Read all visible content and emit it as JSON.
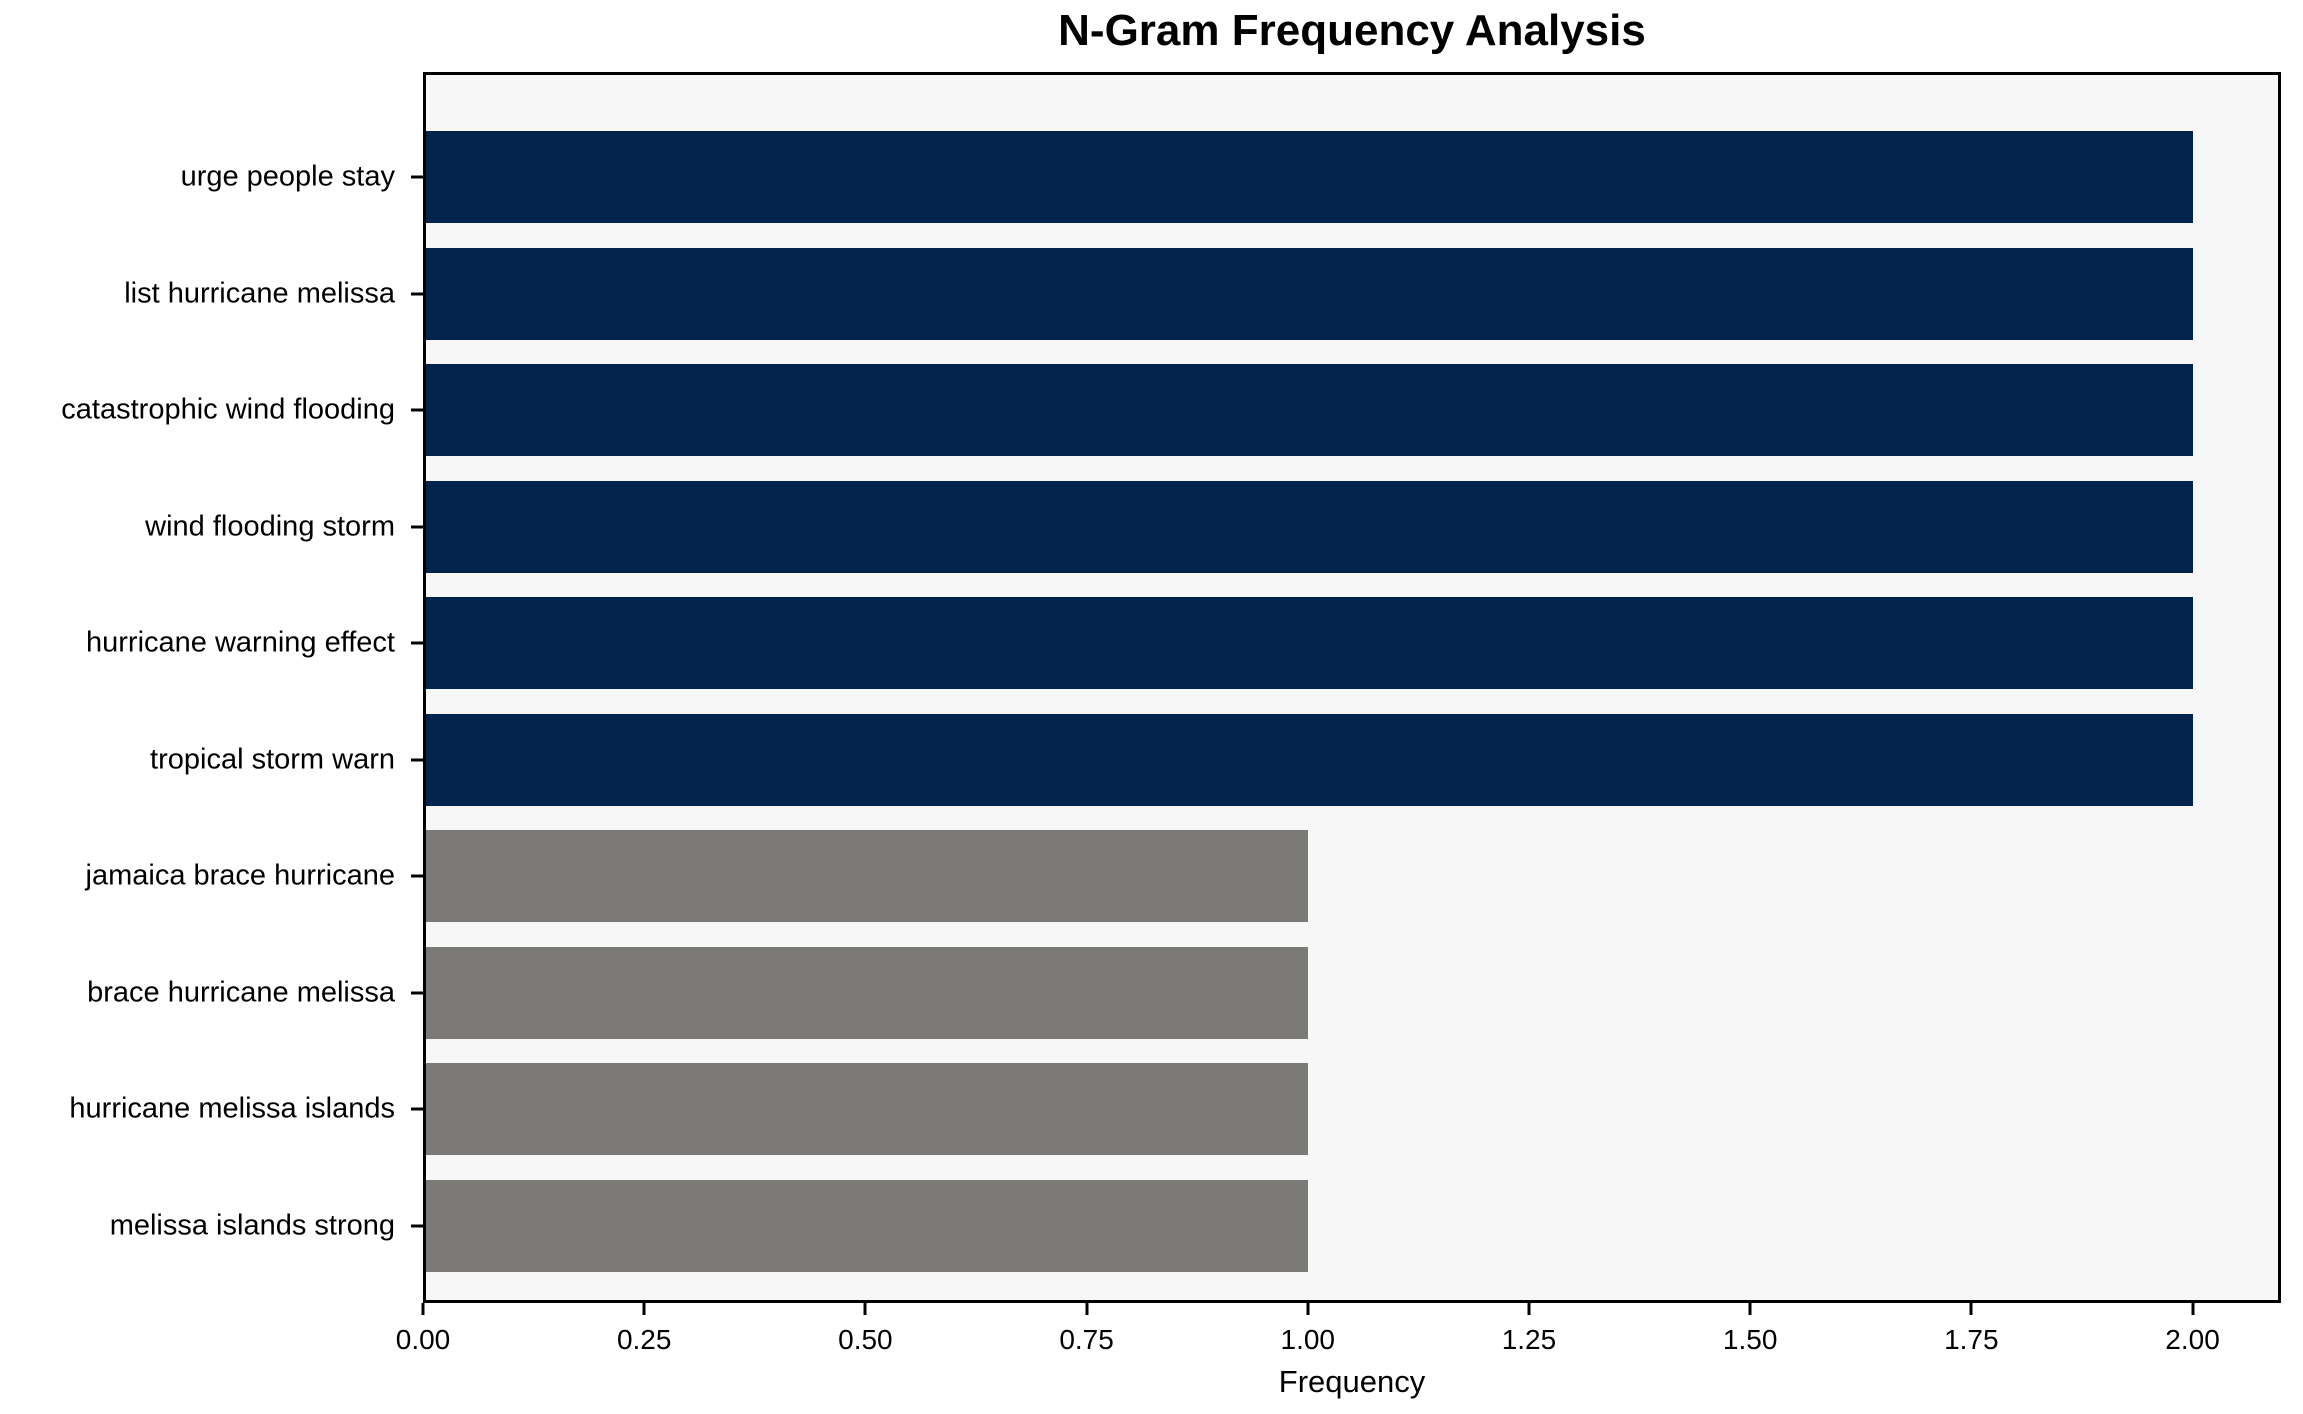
{
  "chart_data": {
    "type": "bar",
    "orientation": "horizontal",
    "title": "N-Gram Frequency Analysis",
    "xlabel": "Frequency",
    "ylabel": "",
    "categories": [
      "urge people stay",
      "list hurricane melissa",
      "catastrophic wind flooding",
      "wind flooding storm",
      "hurricane warning effect",
      "tropical storm warn",
      "jamaica brace hurricane",
      "brace hurricane melissa",
      "hurricane melissa islands",
      "melissa islands strong"
    ],
    "values": [
      2,
      2,
      2,
      2,
      2,
      2,
      1,
      1,
      1,
      1
    ],
    "bar_colors": [
      "#02234c",
      "#02234c",
      "#02234c",
      "#02234c",
      "#02234c",
      "#02234c",
      "#7b7a77",
      "#7b7a77",
      "#7b7a77",
      "#7b7a77"
    ],
    "xlim": [
      0,
      2.1
    ],
    "xticks": [
      0,
      0.25,
      0.5,
      0.75,
      1.0,
      1.25,
      1.5,
      1.75,
      2.0
    ],
    "xtick_labels": [
      "0.00",
      "0.25",
      "0.50",
      "0.75",
      "1.00",
      "1.25",
      "1.50",
      "1.75",
      "2.00"
    ],
    "grid": false,
    "legend": null,
    "colors": {
      "navy_bar": "#02234c",
      "gray_bar": "#7b7a77",
      "plot_background": "#f7f7f7",
      "spine": "#000000",
      "text": "#000000"
    }
  }
}
